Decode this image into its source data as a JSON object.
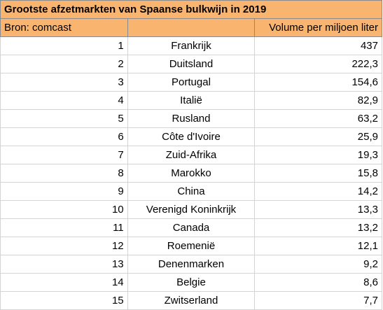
{
  "chart_data": {
    "type": "table",
    "title": "Grootste afzetmarkten van Spaanse bulkwijn in 2019",
    "source": "Bron: comcast",
    "columns": [
      "",
      "",
      "Volume per miljoen liter"
    ],
    "rows": [
      {
        "rank": "1",
        "country": "Frankrijk",
        "volume": "437"
      },
      {
        "rank": "2",
        "country": "Duitsland",
        "volume": "222,3"
      },
      {
        "rank": "3",
        "country": "Portugal",
        "volume": "154,6"
      },
      {
        "rank": "4",
        "country": "Italië",
        "volume": "82,9"
      },
      {
        "rank": "5",
        "country": "Rusland",
        "volume": "63,2"
      },
      {
        "rank": "6",
        "country": "Côte d'Ivoire",
        "volume": "25,9"
      },
      {
        "rank": "7",
        "country": "Zuid-Afrika",
        "volume": "19,3"
      },
      {
        "rank": "8",
        "country": "Marokko",
        "volume": "15,8"
      },
      {
        "rank": "9",
        "country": "China",
        "volume": "14,2"
      },
      {
        "rank": "10",
        "country": "Verenigd Koninkrijk",
        "volume": "13,3"
      },
      {
        "rank": "11",
        "country": "Canada",
        "volume": "13,2"
      },
      {
        "rank": "12",
        "country": "Roemenië",
        "volume": "12,1"
      },
      {
        "rank": "13",
        "country": "Denenmarken",
        "volume": "9,2"
      },
      {
        "rank": "14",
        "country": "Belgie",
        "volume": "8,6"
      },
      {
        "rank": "15",
        "country": "Zwitserland",
        "volume": "7,7"
      }
    ]
  },
  "colors": {
    "header_fill": "#f9b46f",
    "grid": "#d4d4d4"
  }
}
